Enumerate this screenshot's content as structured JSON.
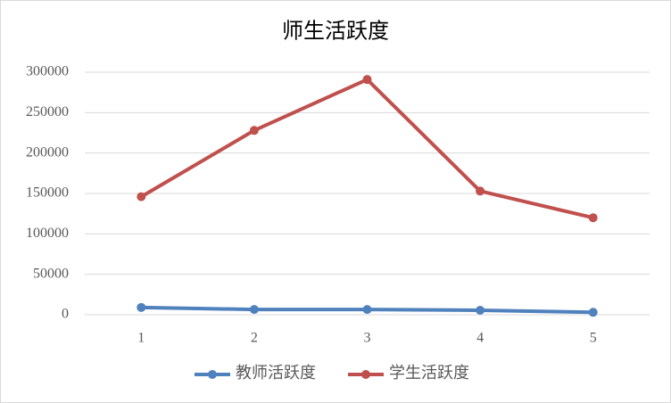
{
  "chart_data": {
    "type": "line",
    "title": "师生活跃度",
    "categories": [
      "1",
      "2",
      "3",
      "4",
      "5"
    ],
    "series": [
      {
        "name": "教师活跃度",
        "color": "#4f81bd",
        "values": [
          9000,
          6500,
          6500,
          5500,
          3000
        ]
      },
      {
        "name": "学生活跃度",
        "color": "#c0504d",
        "values": [
          146000,
          228000,
          291000,
          153000,
          120000
        ]
      }
    ],
    "ylim": [
      0,
      300000
    ],
    "yticks": [
      0,
      50000,
      100000,
      150000,
      200000,
      250000,
      300000
    ],
    "grid": true,
    "legend": "bottom"
  }
}
